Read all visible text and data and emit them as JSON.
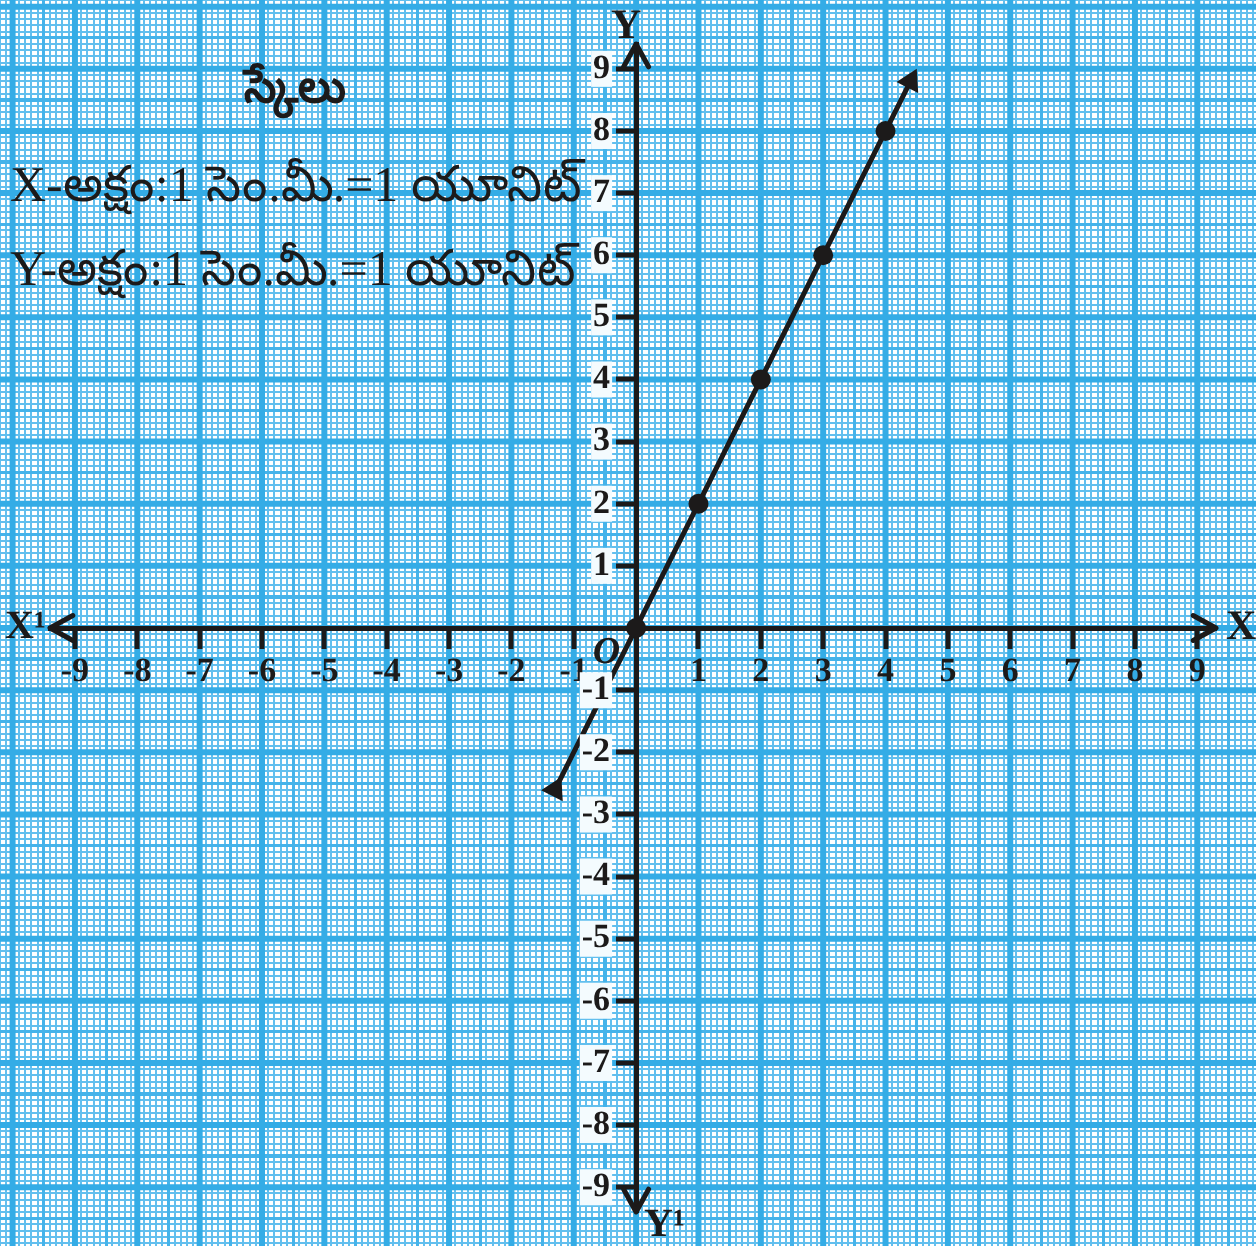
{
  "chart_data": {
    "type": "line",
    "title": "స్కేలు",
    "xlabel": "X",
    "ylabel": "Y",
    "annotations": [
      "X-అక్షం:1 సెం.మీ.=1 యూనిట్",
      "Y-అక్షం:1 సెం.మీ.=1 యూనిట్",
      {
        "text": "O",
        "x": 0,
        "y": 0
      },
      "X¹",
      "Y¹"
    ],
    "xlim": [
      -9.4,
      9.3
    ],
    "ylim": [
      -9.4,
      9.4
    ],
    "xticks": [
      -9,
      -8,
      -7,
      -6,
      -5,
      -4,
      -3,
      -2,
      -1,
      1,
      2,
      3,
      4,
      5,
      6,
      7,
      8,
      9
    ],
    "yticks": [
      -9,
      -8,
      -7,
      -6,
      -5,
      -4,
      -3,
      -2,
      -1,
      1,
      2,
      3,
      4,
      5,
      6,
      7,
      8,
      9
    ],
    "grid": true,
    "series": [
      {
        "type": "scatter",
        "x": [
          0,
          1,
          2,
          3,
          4
        ],
        "values": [
          0,
          2,
          4,
          6,
          8
        ],
        "color": "#1c1a1a",
        "marker": "circle"
      },
      {
        "x": [
          -1.3,
          4.4
        ],
        "values": [
          -2.6,
          8.8
        ],
        "color": "#1c1a1a",
        "marker": "triangle"
      }
    ]
  }
}
